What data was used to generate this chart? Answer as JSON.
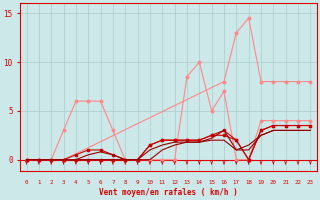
{
  "xlabel": "Vent moyen/en rafales ( km/h )",
  "xlim": [
    -0.5,
    23.5
  ],
  "ylim": [
    -1.2,
    16
  ],
  "yticks": [
    0,
    5,
    10,
    15
  ],
  "xticks": [
    0,
    1,
    2,
    3,
    4,
    5,
    6,
    7,
    8,
    9,
    10,
    11,
    12,
    13,
    14,
    15,
    16,
    17,
    18,
    19,
    20,
    21,
    22,
    23
  ],
  "bg_color": "#cce8e8",
  "grid_color": "#aacccc",
  "tick_color": "#dd0000",
  "label_color": "#dd0000",
  "series": [
    {
      "x": [
        0,
        1,
        2,
        3,
        4,
        5,
        6,
        7,
        8,
        9,
        10,
        11,
        12,
        13,
        14,
        15,
        16,
        17,
        18,
        19,
        20,
        21,
        22,
        23
      ],
      "y": [
        0,
        0,
        0,
        3,
        6,
        6,
        6,
        3,
        0,
        0,
        0,
        0,
        0,
        8.5,
        10,
        5,
        7,
        0,
        0,
        4,
        4,
        4,
        4,
        4
      ],
      "color": "#ff8888",
      "lw": 0.8,
      "marker": "o",
      "ms": 1.8
    },
    {
      "x": [
        0,
        3,
        16,
        17,
        18,
        19,
        20,
        21,
        22,
        23
      ],
      "y": [
        0,
        0,
        8,
        13,
        14.5,
        8,
        8,
        8,
        8,
        8
      ],
      "color": "#ff8888",
      "lw": 0.8,
      "marker": "o",
      "ms": 1.8
    },
    {
      "x": [
        0,
        1,
        2,
        3,
        4,
        5,
        6,
        7,
        8,
        9,
        10,
        11,
        12,
        13,
        14,
        15,
        16,
        17,
        18,
        19,
        20,
        21,
        22,
        23
      ],
      "y": [
        0,
        0,
        0,
        0,
        0.5,
        1,
        1,
        0.5,
        0,
        0,
        1.5,
        2,
        2,
        2,
        2,
        2.5,
        2.5,
        2,
        0,
        3,
        3.5,
        3.5,
        3.5,
        3.5
      ],
      "color": "#cc0000",
      "lw": 0.8,
      "marker": "s",
      "ms": 1.5
    },
    {
      "x": [
        0,
        1,
        2,
        3,
        4,
        5,
        6,
        7,
        8,
        9,
        10,
        11,
        12,
        13,
        14,
        15,
        16,
        17,
        18,
        19,
        20,
        21,
        22,
        23
      ],
      "y": [
        0,
        0,
        0,
        0,
        0,
        0,
        0,
        0,
        0,
        0,
        1.5,
        2,
        2,
        2,
        2,
        2.5,
        3,
        2,
        0,
        3,
        3.5,
        3.5,
        3.5,
        3.5
      ],
      "color": "#cc0000",
      "lw": 0.8,
      "marker": "s",
      "ms": 1.5
    },
    {
      "x": [
        0,
        1,
        2,
        3,
        4,
        5,
        6,
        7,
        8,
        9,
        10,
        11,
        12,
        13,
        14,
        15,
        16,
        17,
        18,
        19,
        20,
        21,
        22,
        23
      ],
      "y": [
        0,
        0,
        0,
        0,
        0,
        0.5,
        0.8,
        0.5,
        0,
        0,
        1,
        1.5,
        1.8,
        1.8,
        1.8,
        2,
        2,
        1,
        1,
        2.5,
        3,
        3,
        3,
        3
      ],
      "color": "#990000",
      "lw": 0.8,
      "marker": null,
      "ms": 0
    },
    {
      "x": [
        0,
        1,
        2,
        3,
        4,
        5,
        6,
        7,
        8,
        9,
        10,
        11,
        12,
        13,
        14,
        15,
        16,
        17,
        18,
        19,
        20,
        21,
        22,
        23
      ],
      "y": [
        0,
        0,
        0,
        0,
        0,
        0,
        0,
        0,
        0,
        0,
        0,
        1,
        1.5,
        1.8,
        1.8,
        2.2,
        3,
        1,
        1.5,
        2.5,
        3,
        3,
        3,
        3
      ],
      "color": "#990000",
      "lw": 0.8,
      "marker": null,
      "ms": 0
    }
  ],
  "arrow_color": "#dd0000",
  "arrow_size": 3.5
}
